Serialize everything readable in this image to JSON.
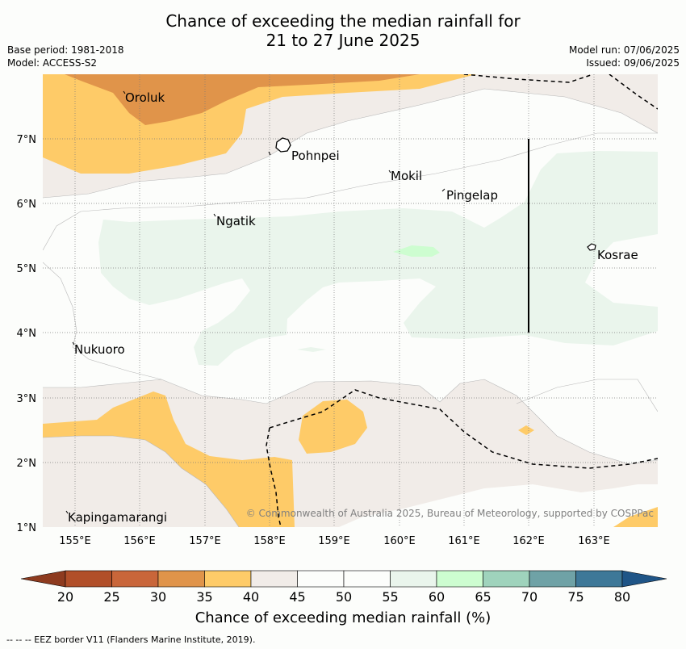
{
  "title_line1": "Chance of exceeding the median rainfall for",
  "title_line2": "21 to 27 June 2025",
  "meta": {
    "base_period": "Base period: 1981-2018",
    "model": "Model: ACCESS-S2",
    "model_run": "Model run: 07/06/2025",
    "issued": "Issued: 09/06/2025"
  },
  "axes": {
    "lat_labels": [
      "7°N",
      "6°N",
      "5°N",
      "4°N",
      "3°N",
      "2°N",
      "1°N"
    ],
    "lon_labels": [
      "155°E",
      "156°E",
      "157°E",
      "158°E",
      "159°E",
      "160°E",
      "161°E",
      "162°E",
      "163°E"
    ]
  },
  "places": [
    "Oroluk",
    "Pohnpei",
    "Mokil",
    "Pingelap",
    "Ngatik",
    "Kosrae",
    "Nukuoro",
    "Kapingamarangi"
  ],
  "copyright": "© Commonwealth of Australia 2025, Bureau of Meteorology, supported by COSPPac",
  "colorbar": {
    "ticks": [
      "20",
      "25",
      "30",
      "35",
      "40",
      "45",
      "50",
      "55",
      "60",
      "65",
      "70",
      "75",
      "80"
    ],
    "colors": [
      "#b14f29",
      "#c9663a",
      "#e0944a",
      "#fecb68",
      "#f1ece8",
      "#fcfdfb",
      "#fcfdfb",
      "#eaf5ec",
      "#cdfdd0",
      "#9fd3bc",
      "#6fa2a6",
      "#3e7898"
    ],
    "under_color": "#8e3b1f",
    "over_color": "#1f5587",
    "label": "Chance of exceeding median rainfall (%)"
  },
  "footer": "--  --  -- EEZ border V11 (Flanders Marine Institute, 2019)."
}
